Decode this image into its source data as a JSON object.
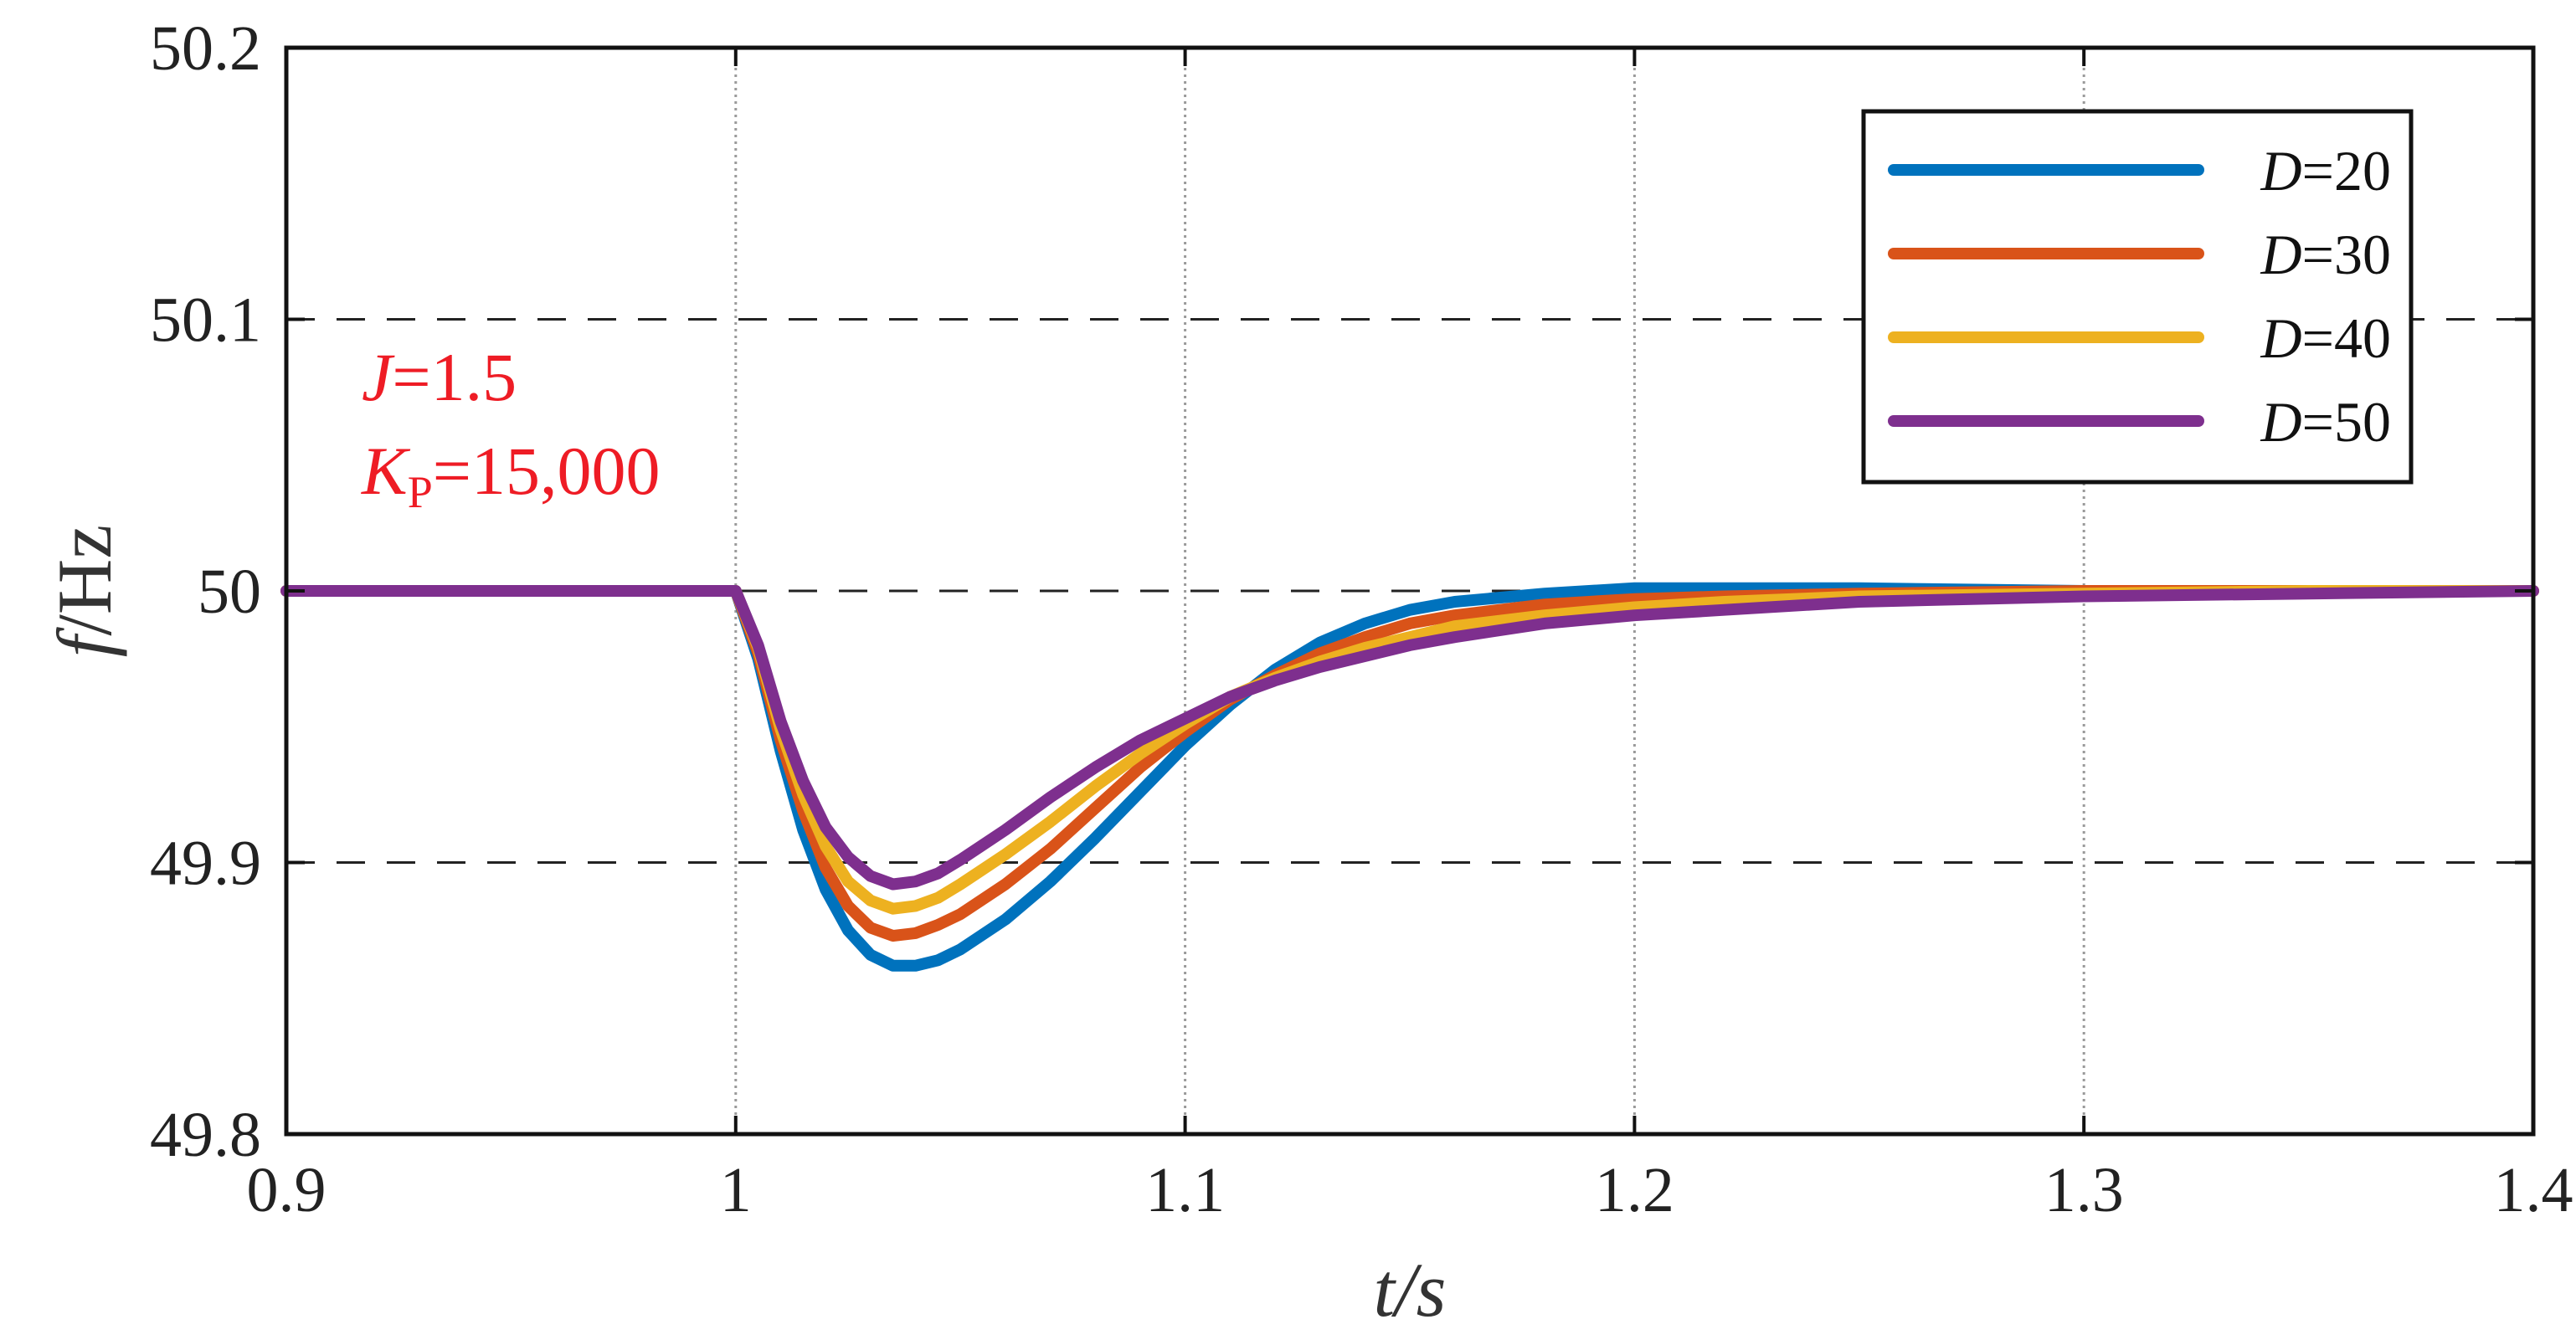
{
  "chart_data": {
    "type": "line",
    "xlabel": {
      "main": "t",
      "sep": "/",
      "unit": "s"
    },
    "ylabel": {
      "main": "f",
      "sep": "/",
      "unit": "Hz"
    },
    "xlim": [
      0.9,
      1.4
    ],
    "ylim": [
      49.8,
      50.2
    ],
    "xticks": [
      0.9,
      1.0,
      1.1,
      1.2,
      1.3,
      1.4
    ],
    "xtick_labels": [
      "0.9",
      "1",
      "1.1",
      "1.2",
      "1.3",
      "1.4"
    ],
    "yticks": [
      49.8,
      49.9,
      50.0,
      50.1,
      50.2
    ],
    "ytick_labels": [
      "49.8",
      "49.9",
      "50",
      "50.1",
      "50.2"
    ],
    "grid": true,
    "legend_position": "top-right",
    "annotation": {
      "line1": {
        "var": "J",
        "rest": "=1.5"
      },
      "line2": {
        "var": "K",
        "sub": "P",
        "rest": "=15,000"
      }
    },
    "series": [
      {
        "name": "D=20",
        "legend_var": "D",
        "legend_rest": "=20",
        "color": "#0072BD",
        "x": [
          0.9,
          1.0,
          1.005,
          1.01,
          1.015,
          1.02,
          1.025,
          1.03,
          1.035,
          1.04,
          1.045,
          1.05,
          1.06,
          1.07,
          1.08,
          1.09,
          1.1,
          1.11,
          1.12,
          1.13,
          1.14,
          1.15,
          1.16,
          1.18,
          1.2,
          1.22,
          1.25,
          1.3,
          1.35,
          1.4
        ],
        "y": [
          50.0,
          50.0,
          49.975,
          49.941,
          49.912,
          49.89,
          49.875,
          49.866,
          49.862,
          49.862,
          49.864,
          49.868,
          49.879,
          49.893,
          49.909,
          49.926,
          49.943,
          49.958,
          49.971,
          49.981,
          49.988,
          49.993,
          49.996,
          49.999,
          50.001,
          50.001,
          50.001,
          50.0,
          50.0,
          50.0
        ]
      },
      {
        "name": "D=30",
        "legend_var": "D",
        "legend_rest": "=30",
        "color": "#D95319",
        "x": [
          0.9,
          1.0,
          1.005,
          1.01,
          1.015,
          1.02,
          1.025,
          1.03,
          1.035,
          1.04,
          1.045,
          1.05,
          1.06,
          1.07,
          1.08,
          1.09,
          1.1,
          1.11,
          1.12,
          1.13,
          1.14,
          1.15,
          1.16,
          1.18,
          1.2,
          1.22,
          1.25,
          1.3,
          1.35,
          1.4
        ],
        "y": [
          50.0,
          50.0,
          49.977,
          49.945,
          49.919,
          49.898,
          49.884,
          49.876,
          49.873,
          49.874,
          49.877,
          49.881,
          49.892,
          49.905,
          49.92,
          49.935,
          49.948,
          49.96,
          49.969,
          49.977,
          49.983,
          49.988,
          49.991,
          49.995,
          49.997,
          49.998,
          49.999,
          50.0,
          50.0,
          50.0
        ]
      },
      {
        "name": "D=40",
        "legend_var": "D",
        "legend_rest": "=40",
        "color": "#EDB120",
        "x": [
          0.9,
          1.0,
          1.005,
          1.01,
          1.015,
          1.02,
          1.025,
          1.03,
          1.035,
          1.04,
          1.045,
          1.05,
          1.06,
          1.07,
          1.08,
          1.09,
          1.1,
          1.11,
          1.12,
          1.13,
          1.14,
          1.15,
          1.16,
          1.18,
          1.2,
          1.22,
          1.25,
          1.3,
          1.35,
          1.4
        ],
        "y": [
          50.0,
          50.0,
          49.979,
          49.949,
          49.925,
          49.906,
          49.893,
          49.886,
          49.883,
          49.884,
          49.887,
          49.892,
          49.903,
          49.915,
          49.928,
          49.94,
          49.951,
          49.961,
          49.968,
          49.974,
          49.979,
          49.983,
          49.987,
          49.991,
          49.994,
          49.996,
          49.998,
          49.999,
          50.0,
          50.0
        ]
      },
      {
        "name": "D=50",
        "legend_var": "D",
        "legend_rest": "=50",
        "color": "#7E2F8E",
        "x": [
          0.9,
          1.0,
          1.005,
          1.01,
          1.015,
          1.02,
          1.025,
          1.03,
          1.035,
          1.04,
          1.045,
          1.05,
          1.06,
          1.07,
          1.08,
          1.09,
          1.1,
          1.11,
          1.12,
          1.13,
          1.14,
          1.15,
          1.16,
          1.18,
          1.2,
          1.22,
          1.25,
          1.3,
          1.35,
          1.4
        ],
        "y": [
          50.0,
          50.0,
          49.98,
          49.952,
          49.93,
          49.913,
          49.902,
          49.895,
          49.892,
          49.893,
          49.896,
          49.901,
          49.912,
          49.924,
          49.935,
          49.945,
          49.953,
          49.961,
          49.967,
          49.972,
          49.976,
          49.98,
          49.983,
          49.988,
          49.991,
          49.993,
          49.996,
          49.998,
          49.999,
          50.0
        ]
      }
    ]
  }
}
